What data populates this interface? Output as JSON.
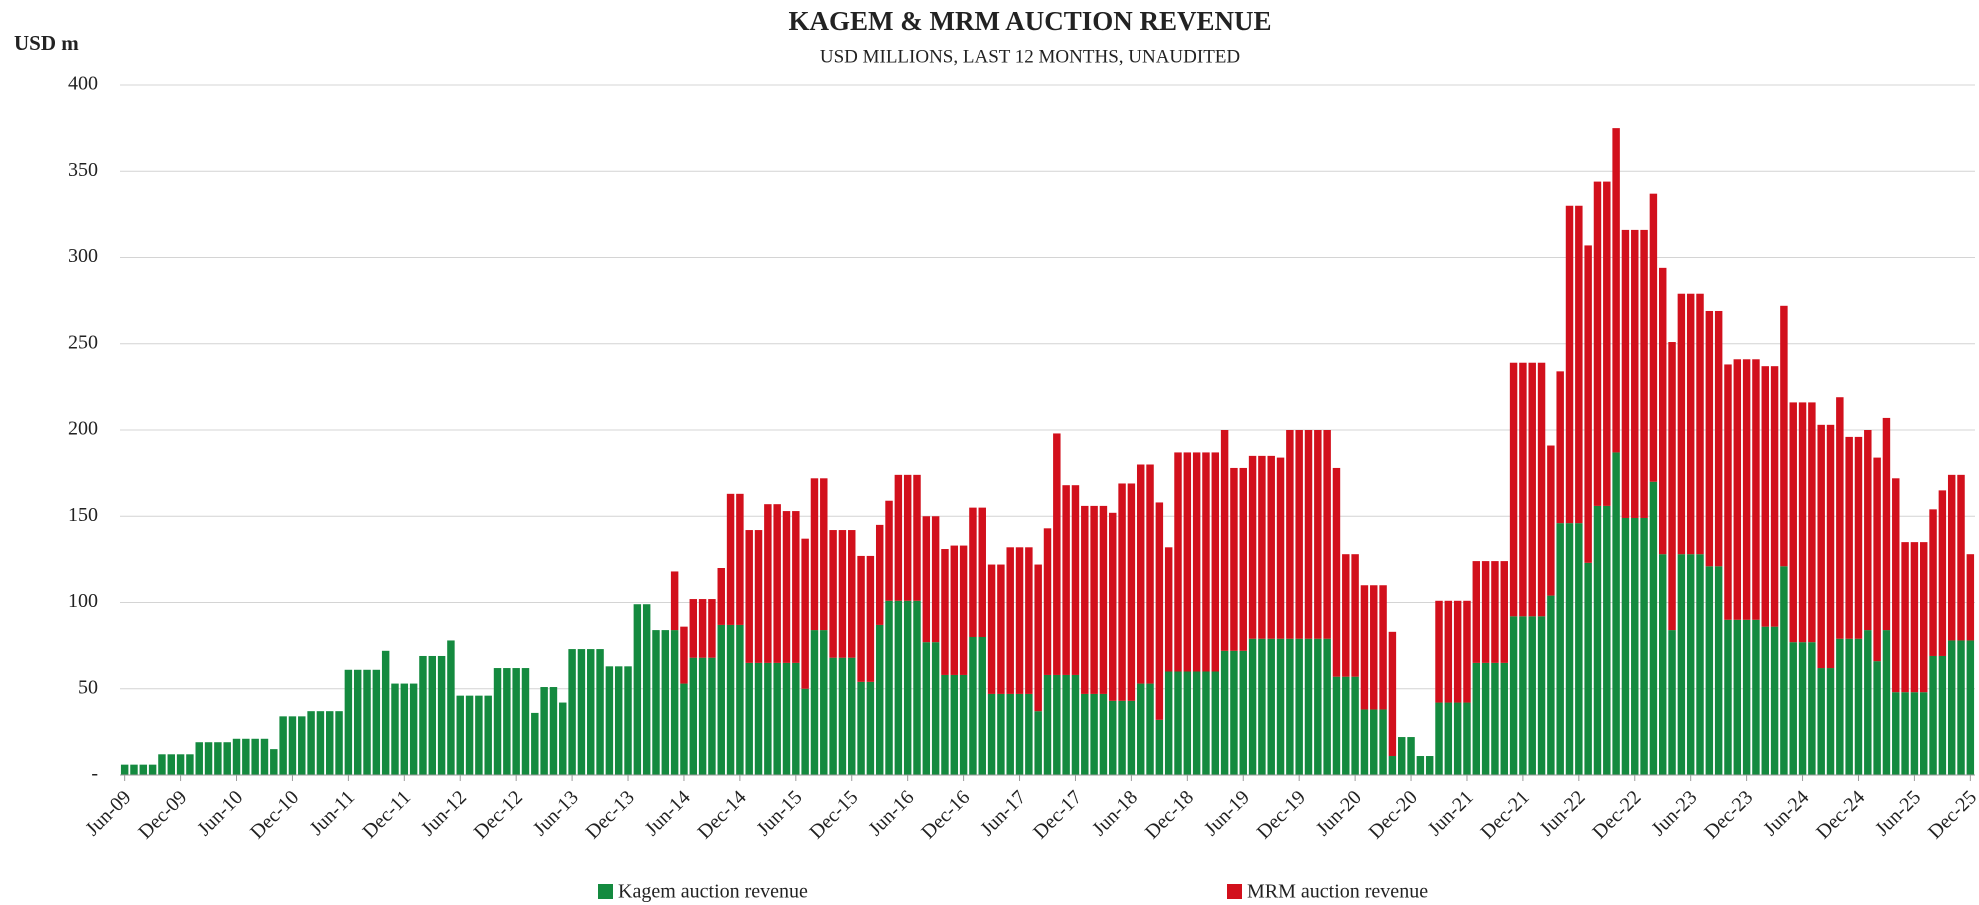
{
  "chart_data": {
    "type": "stacked_bar",
    "title": "KAGEM & MRM AUCTION REVENUE",
    "subtitle": "USD MILLIONS, LAST 12 MONTHS, UNAUDITED",
    "y_label": "USD m",
    "categories": [
      "Jun-09",
      null,
      null,
      null,
      null,
      null,
      "Dec-09",
      null,
      null,
      null,
      null,
      null,
      "Jun-10",
      null,
      null,
      null,
      null,
      null,
      "Dec-10",
      null,
      null,
      null,
      null,
      null,
      "Jun-11",
      null,
      null,
      null,
      null,
      null,
      "Dec-11",
      null,
      null,
      null,
      null,
      null,
      "Jun-12",
      null,
      null,
      null,
      null,
      null,
      "Dec-12",
      null,
      null,
      null,
      null,
      null,
      "Jun-13",
      null,
      null,
      null,
      null,
      null,
      "Dec-13",
      null,
      null,
      null,
      null,
      null,
      "Jun-14",
      null,
      null,
      null,
      null,
      null,
      "Dec-14",
      null,
      null,
      null,
      null,
      null,
      "Jun-15",
      null,
      null,
      null,
      null,
      null,
      "Dec-15",
      null,
      null,
      null,
      null,
      null,
      "Jun-16",
      null,
      null,
      null,
      null,
      null,
      "Dec-16",
      null,
      null,
      null,
      null,
      null,
      "Jun-17",
      null,
      null,
      null,
      null,
      null,
      "Dec-17",
      null,
      null,
      null,
      null,
      null,
      "Jun-18",
      null,
      null,
      null,
      null,
      null,
      "Dec-18",
      null,
      null,
      null,
      null,
      null,
      "Jun-19",
      null,
      null,
      null,
      null,
      null,
      "Dec-19",
      null,
      null,
      null,
      null,
      null,
      "Jun-20",
      null,
      null,
      null,
      null,
      null,
      "Dec-20",
      null,
      null,
      null,
      null,
      null,
      "Jun-21",
      null,
      null,
      null,
      null,
      null,
      "Dec-21",
      null,
      null,
      null,
      null,
      null,
      "Jun-22",
      null,
      null,
      null,
      null,
      null,
      "Dec-22",
      null,
      null,
      null,
      null,
      null,
      "Jun-23",
      null,
      null,
      null,
      null,
      null,
      "Dec-23",
      null,
      null,
      null,
      null,
      null,
      "Jun-24",
      null,
      null,
      null,
      null,
      null,
      "Dec-24",
      null,
      null,
      null,
      null,
      null,
      "Jun-25",
      null,
      null,
      null,
      null,
      null,
      "Dec-25"
    ],
    "series": [
      {
        "name": "Kagem auction revenue",
        "color": "#148a3f",
        "values": [
          6,
          6,
          6,
          6,
          12,
          12,
          12,
          12,
          19,
          19,
          19,
          19,
          21,
          21,
          21,
          21,
          15,
          34,
          34,
          34,
          37,
          37,
          37,
          37,
          61,
          61,
          61,
          61,
          72,
          53,
          53,
          53,
          69,
          69,
          69,
          78,
          46,
          46,
          46,
          46,
          62,
          62,
          62,
          62,
          36,
          51,
          51,
          42,
          73,
          73,
          73,
          73,
          63,
          63,
          63,
          99,
          99,
          84,
          84,
          84,
          53,
          68,
          68,
          68,
          87,
          87,
          87,
          65,
          65,
          65,
          65,
          65,
          65,
          50,
          84,
          84,
          68,
          68,
          68,
          54,
          54,
          87,
          101,
          101,
          101,
          101,
          77,
          77,
          58,
          58,
          58,
          80,
          80,
          47,
          47,
          47,
          47,
          47,
          37,
          58,
          58,
          58,
          58,
          47,
          47,
          47,
          43,
          43,
          43,
          53,
          53,
          32,
          60,
          60,
          60,
          60,
          60,
          60,
          72,
          72,
          72,
          79,
          79,
          79,
          79,
          79,
          79,
          79,
          79,
          79,
          57,
          57,
          57,
          38,
          38,
          38,
          11,
          22,
          22,
          11,
          11,
          42,
          42,
          42,
          42,
          65,
          65,
          65,
          65,
          92,
          92,
          92,
          92,
          104,
          146,
          146,
          146,
          123,
          156,
          156,
          187,
          149,
          149,
          149,
          170,
          128,
          84,
          128,
          128,
          128,
          121,
          121,
          90,
          90,
          90,
          90,
          86,
          86,
          121,
          77,
          77,
          77,
          62,
          62,
          79,
          79,
          79,
          84,
          66,
          84,
          48,
          48,
          48,
          48,
          69,
          69,
          78,
          78,
          78
        ]
      },
      {
        "name": "MRM auction revenue",
        "color": "#d2101c",
        "values": [
          0,
          0,
          0,
          0,
          0,
          0,
          0,
          0,
          0,
          0,
          0,
          0,
          0,
          0,
          0,
          0,
          0,
          0,
          0,
          0,
          0,
          0,
          0,
          0,
          0,
          0,
          0,
          0,
          0,
          0,
          0,
          0,
          0,
          0,
          0,
          0,
          0,
          0,
          0,
          0,
          0,
          0,
          0,
          0,
          0,
          0,
          0,
          0,
          0,
          0,
          0,
          0,
          0,
          0,
          0,
          0,
          0,
          0,
          0,
          34,
          33,
          34,
          34,
          34,
          33,
          76,
          76,
          77,
          77,
          92,
          92,
          88,
          88,
          87,
          88,
          88,
          74,
          74,
          74,
          73,
          73,
          58,
          58,
          73,
          73,
          73,
          73,
          73,
          73,
          75,
          75,
          75,
          75,
          75,
          75,
          85,
          85,
          85,
          85,
          85,
          140,
          110,
          110,
          109,
          109,
          109,
          109,
          126,
          126,
          127,
          127,
          126,
          72,
          127,
          127,
          127,
          127,
          127,
          128,
          106,
          106,
          106,
          106,
          106,
          105,
          121,
          121,
          121,
          121,
          121,
          121,
          71,
          71,
          72,
          72,
          72,
          72,
          0,
          0,
          0,
          0,
          59,
          59,
          59,
          59,
          59,
          59,
          59,
          59,
          147,
          147,
          147,
          147,
          87,
          88,
          184,
          184,
          184,
          188,
          188,
          188,
          167,
          167,
          167,
          167,
          166,
          167,
          151,
          151,
          151,
          148,
          148,
          148,
          151,
          151,
          151,
          151,
          151,
          151,
          139,
          139,
          139,
          141,
          141,
          140,
          117,
          117,
          116,
          118,
          123,
          124,
          87,
          87,
          87,
          85,
          96,
          96,
          96,
          50
        ]
      }
    ],
    "ylim": [
      0,
      400
    ],
    "yticks": [
      {
        "value": 0,
        "label": "-"
      },
      50,
      100,
      150,
      200,
      250,
      300,
      350,
      400
    ],
    "grid": true,
    "legend": "bottom"
  }
}
